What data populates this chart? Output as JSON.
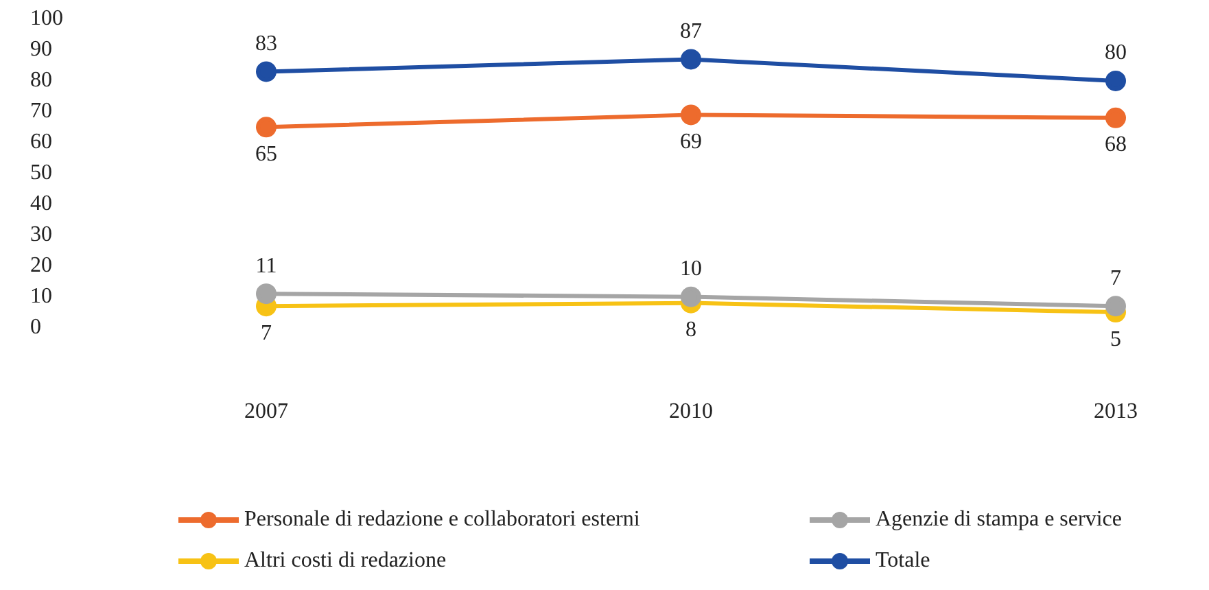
{
  "chart_data": {
    "type": "line",
    "categories": [
      "2007",
      "2010",
      "2013"
    ],
    "series": [
      {
        "name": "Personale di redazione e collaboratori esterni",
        "color": "#ed6b2d",
        "values": [
          65,
          69,
          68
        ]
      },
      {
        "name": "Agenzie di stampa e service",
        "color": "#a5a5a5",
        "values": [
          11,
          10,
          7
        ]
      },
      {
        "name": "Altri costi di redazione",
        "color": "#f7c215",
        "values": [
          7,
          8,
          5
        ]
      },
      {
        "name": "Totale",
        "color": "#1f4ea3",
        "values": [
          83,
          87,
          80
        ]
      }
    ],
    "ylim": [
      0,
      100
    ],
    "yticks": [
      0,
      10,
      20,
      30,
      40,
      50,
      60,
      70,
      80,
      90,
      100
    ],
    "grid": false,
    "legend": "bottom",
    "marker": "circle",
    "line_style": "solid",
    "data_labels": true
  }
}
